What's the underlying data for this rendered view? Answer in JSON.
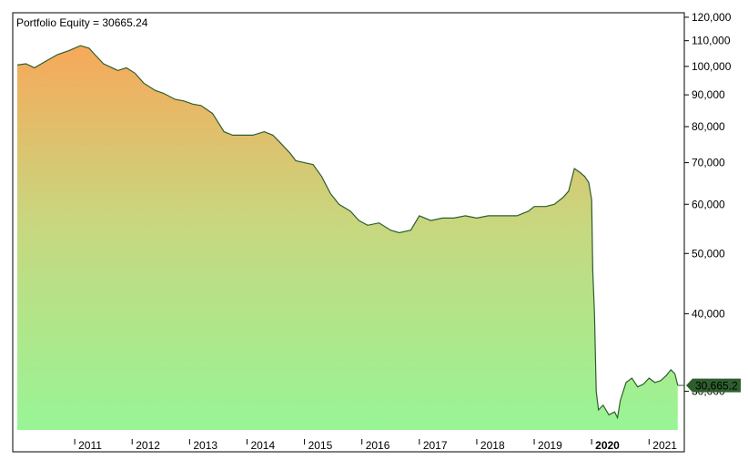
{
  "chart_data": {
    "type": "area",
    "title": "Portfolio Equity = 30665.24",
    "y_scale": "log",
    "ylim": [
      26000,
      122000
    ],
    "xlim": [
      2010.0,
      2021.55
    ],
    "y_ticks": [
      {
        "value": 120000,
        "label": "120,000"
      },
      {
        "value": 110000,
        "label": "110,000"
      },
      {
        "value": 100000,
        "label": "100,000"
      },
      {
        "value": 90000,
        "label": "90,000"
      },
      {
        "value": 80000,
        "label": "80,000"
      },
      {
        "value": 70000,
        "label": "70,000"
      },
      {
        "value": 60000,
        "label": "60,000"
      },
      {
        "value": 50000,
        "label": "50,000"
      },
      {
        "value": 40000,
        "label": "40,000"
      },
      {
        "value": 30000,
        "label": "30,000"
      }
    ],
    "x_ticks": [
      {
        "value": 2011,
        "label": "2011",
        "bold": false
      },
      {
        "value": 2012,
        "label": "2012",
        "bold": false
      },
      {
        "value": 2013,
        "label": "2013",
        "bold": false
      },
      {
        "value": 2014,
        "label": "2014",
        "bold": false
      },
      {
        "value": 2015,
        "label": "2015",
        "bold": false
      },
      {
        "value": 2016,
        "label": "2016",
        "bold": false
      },
      {
        "value": 2017,
        "label": "2017",
        "bold": false
      },
      {
        "value": 2018,
        "label": "2018",
        "bold": false
      },
      {
        "value": 2019,
        "label": "2019",
        "bold": false
      },
      {
        "value": 2020,
        "label": "2020",
        "bold": true
      },
      {
        "value": 2021,
        "label": "2021",
        "bold": false
      }
    ],
    "last_value_label": "30,665.2",
    "last_value": 30665.24,
    "series": [
      {
        "x": [
          2010.0,
          2010.15,
          2010.3,
          2010.5,
          2010.7,
          2010.9,
          2011.1,
          2011.25,
          2011.35,
          2011.5,
          2011.6,
          2011.75,
          2011.9,
          2012.05,
          2012.2,
          2012.4,
          2012.55,
          2012.75,
          2012.9,
          2013.05,
          2013.2,
          2013.4,
          2013.6,
          2013.75,
          2013.9,
          2014.1,
          2014.3,
          2014.45,
          2014.6,
          2014.75,
          2014.85,
          2015.0,
          2015.15,
          2015.3,
          2015.45,
          2015.6,
          2015.8,
          2015.95,
          2016.1,
          2016.3,
          2016.5,
          2016.65,
          2016.85,
          2017.0,
          2017.2,
          2017.4,
          2017.6,
          2017.8,
          2018.0,
          2018.2,
          2018.4,
          2018.55,
          2018.7,
          2018.9,
          2019.0,
          2019.2,
          2019.35,
          2019.5,
          2019.6,
          2019.7,
          2019.8,
          2019.88,
          2019.95,
          2020.0,
          2020.02,
          2020.05,
          2020.08,
          2020.12,
          2020.2,
          2020.3,
          2020.4,
          2020.45,
          2020.5,
          2020.6,
          2020.7,
          2020.8,
          2020.9,
          2021.0,
          2021.1,
          2021.2,
          2021.3,
          2021.38,
          2021.45,
          2021.5
        ],
        "values": [
          100500,
          101000,
          99500,
          102000,
          104500,
          106000,
          108000,
          107000,
          104500,
          101000,
          100000,
          98500,
          99500,
          97500,
          94000,
          91500,
          90500,
          88500,
          88000,
          87000,
          86500,
          84000,
          78500,
          77500,
          77500,
          77500,
          78500,
          77500,
          75000,
          72500,
          70500,
          70000,
          69500,
          66500,
          62500,
          60000,
          58500,
          56500,
          55500,
          56000,
          54500,
          54000,
          54500,
          57500,
          56500,
          57000,
          57000,
          57500,
          57000,
          57500,
          57500,
          57500,
          57500,
          58500,
          59500,
          59500,
          60000,
          61500,
          63000,
          68500,
          67500,
          66500,
          65000,
          61000,
          47000,
          40000,
          30000,
          28000,
          28500,
          27500,
          27800,
          27200,
          29000,
          31000,
          31500,
          30500,
          30800,
          31500,
          31000,
          31200,
          31800,
          32500,
          32000,
          30665.24
        ]
      }
    ],
    "colors": {
      "line": "#2e5e2e",
      "fill_top": "#f7a85a",
      "fill_mid": "#c9d67e",
      "fill_bottom": "#98f596",
      "marker_bg": "#2e5e2e",
      "marker_text": "#ffffff"
    }
  }
}
